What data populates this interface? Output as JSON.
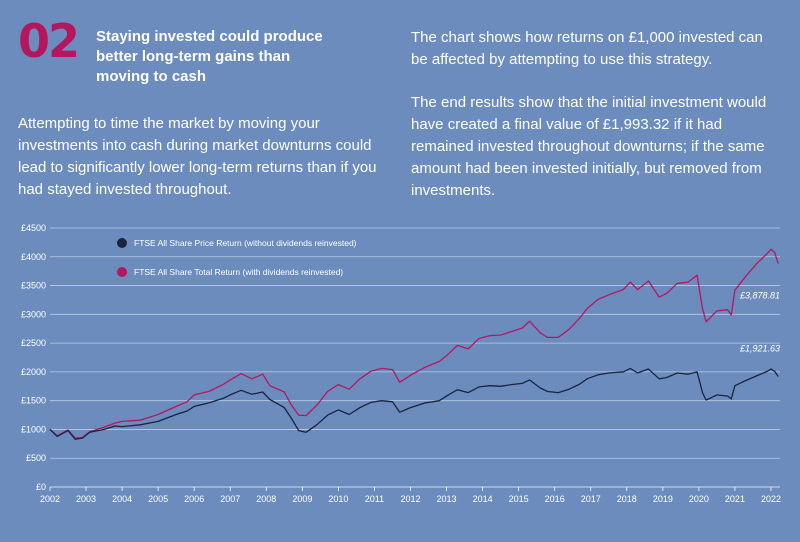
{
  "section": {
    "number": "02",
    "heading": "Staying invested could produce better long-term gains than moving to cash",
    "intro": "Attempting to time the market by moving your investments into cash during market downturns could lead to significantly lower long-term returns than if you had stayed invested throughout.",
    "explain_1": "The chart shows how returns on £1,000 invested can be affected by attempting to use this strategy.",
    "explain_2": "The end results show that the initial investment would have created a final value of £1,993.32 if it had remained invested throughout downturns; if the same amount had been invested initially, but removed from investments."
  },
  "colors": {
    "background": "#6b8cbd",
    "accent": "#b5175f",
    "price_line": "#1a2440",
    "total_line": "#b5175f",
    "grid": "#ffffff"
  },
  "chart_data": {
    "type": "line",
    "title": "",
    "xlabel": "",
    "ylabel": "",
    "ylim": [
      0,
      4500
    ],
    "xlim": [
      2002,
      2022.25
    ],
    "y_ticks": [
      0,
      500,
      1000,
      1500,
      2000,
      2500,
      3000,
      3500,
      4000,
      4500
    ],
    "y_tick_labels": [
      "£0",
      "£500",
      "£1000",
      "£1500",
      "£2000",
      "£2500",
      "£3000",
      "£3500",
      "£4000",
      "£4500"
    ],
    "x_ticks": [
      "2002",
      "2003",
      "2004",
      "2005",
      "2006",
      "2007",
      "2008",
      "2009",
      "2010",
      "2011",
      "2012",
      "2013",
      "2014",
      "2015",
      "2016",
      "2017",
      "2018",
      "2019",
      "2020",
      "2021",
      "2022"
    ],
    "grid": true,
    "legend_position": "top-left",
    "series": [
      {
        "name": "FTSE All Share Price Return (without dividends reinvested)",
        "color": "#1a2440",
        "end_label": "£1,921.63",
        "points": [
          [
            2002,
            1000
          ],
          [
            2002.2,
            880
          ],
          [
            2002.5,
            980
          ],
          [
            2002.7,
            830
          ],
          [
            2002.9,
            850
          ],
          [
            2003.1,
            950
          ],
          [
            2003.5,
            1000
          ],
          [
            2003.8,
            1060
          ],
          [
            2004.0,
            1050
          ],
          [
            2004.5,
            1080
          ],
          [
            2005.0,
            1140
          ],
          [
            2005.5,
            1260
          ],
          [
            2005.8,
            1320
          ],
          [
            2006.0,
            1400
          ],
          [
            2006.4,
            1460
          ],
          [
            2006.8,
            1540
          ],
          [
            2007.0,
            1600
          ],
          [
            2007.3,
            1680
          ],
          [
            2007.6,
            1610
          ],
          [
            2007.9,
            1650
          ],
          [
            2008.1,
            1520
          ],
          [
            2008.5,
            1380
          ],
          [
            2008.7,
            1190
          ],
          [
            2008.9,
            980
          ],
          [
            2009.1,
            950
          ],
          [
            2009.4,
            1080
          ],
          [
            2009.7,
            1250
          ],
          [
            2010.0,
            1340
          ],
          [
            2010.3,
            1260
          ],
          [
            2010.6,
            1380
          ],
          [
            2010.9,
            1470
          ],
          [
            2011.2,
            1500
          ],
          [
            2011.5,
            1480
          ],
          [
            2011.7,
            1300
          ],
          [
            2012.0,
            1380
          ],
          [
            2012.4,
            1460
          ],
          [
            2012.8,
            1500
          ],
          [
            2013.0,
            1580
          ],
          [
            2013.3,
            1690
          ],
          [
            2013.6,
            1640
          ],
          [
            2013.9,
            1740
          ],
          [
            2014.2,
            1760
          ],
          [
            2014.5,
            1750
          ],
          [
            2014.8,
            1780
          ],
          [
            2015.1,
            1800
          ],
          [
            2015.3,
            1860
          ],
          [
            2015.6,
            1720
          ],
          [
            2015.8,
            1660
          ],
          [
            2016.1,
            1640
          ],
          [
            2016.4,
            1700
          ],
          [
            2016.7,
            1790
          ],
          [
            2016.9,
            1880
          ],
          [
            2017.2,
            1950
          ],
          [
            2017.5,
            1980
          ],
          [
            2017.9,
            2000
          ],
          [
            2018.1,
            2060
          ],
          [
            2018.3,
            1980
          ],
          [
            2018.6,
            2050
          ],
          [
            2018.9,
            1880
          ],
          [
            2019.1,
            1900
          ],
          [
            2019.4,
            1980
          ],
          [
            2019.7,
            1960
          ],
          [
            2019.95,
            2000
          ],
          [
            2020.1,
            1640
          ],
          [
            2020.2,
            1510
          ],
          [
            2020.5,
            1600
          ],
          [
            2020.8,
            1580
          ],
          [
            2020.9,
            1530
          ],
          [
            2021.0,
            1760
          ],
          [
            2021.3,
            1850
          ],
          [
            2021.6,
            1930
          ],
          [
            2021.9,
            2010
          ],
          [
            2022.0,
            2050
          ],
          [
            2022.1,
            2010
          ],
          [
            2022.2,
            1920
          ]
        ]
      },
      {
        "name": "FTSE All Share Total Return (with dividends reinvested)",
        "color": "#b5175f",
        "end_label": "£3,878.81",
        "points": [
          [
            2002,
            1000
          ],
          [
            2002.2,
            890
          ],
          [
            2002.5,
            990
          ],
          [
            2002.7,
            850
          ],
          [
            2002.9,
            860
          ],
          [
            2003.1,
            960
          ],
          [
            2003.5,
            1040
          ],
          [
            2003.8,
            1110
          ],
          [
            2004.0,
            1140
          ],
          [
            2004.5,
            1160
          ],
          [
            2005.0,
            1260
          ],
          [
            2005.5,
            1400
          ],
          [
            2005.8,
            1480
          ],
          [
            2006.0,
            1600
          ],
          [
            2006.4,
            1660
          ],
          [
            2006.8,
            1780
          ],
          [
            2007.0,
            1860
          ],
          [
            2007.3,
            1970
          ],
          [
            2007.6,
            1880
          ],
          [
            2007.9,
            1960
          ],
          [
            2008.1,
            1760
          ],
          [
            2008.5,
            1650
          ],
          [
            2008.7,
            1420
          ],
          [
            2008.9,
            1250
          ],
          [
            2009.1,
            1240
          ],
          [
            2009.4,
            1420
          ],
          [
            2009.7,
            1660
          ],
          [
            2010.0,
            1780
          ],
          [
            2010.3,
            1700
          ],
          [
            2010.6,
            1880
          ],
          [
            2010.9,
            2010
          ],
          [
            2011.2,
            2060
          ],
          [
            2011.5,
            2040
          ],
          [
            2011.7,
            1820
          ],
          [
            2012.0,
            1940
          ],
          [
            2012.4,
            2080
          ],
          [
            2012.8,
            2180
          ],
          [
            2013.0,
            2280
          ],
          [
            2013.3,
            2460
          ],
          [
            2013.6,
            2400
          ],
          [
            2013.9,
            2580
          ],
          [
            2014.2,
            2630
          ],
          [
            2014.5,
            2640
          ],
          [
            2014.8,
            2700
          ],
          [
            2015.1,
            2760
          ],
          [
            2015.3,
            2880
          ],
          [
            2015.6,
            2680
          ],
          [
            2015.8,
            2600
          ],
          [
            2016.1,
            2600
          ],
          [
            2016.4,
            2740
          ],
          [
            2016.7,
            2940
          ],
          [
            2016.9,
            3100
          ],
          [
            2017.2,
            3260
          ],
          [
            2017.5,
            3340
          ],
          [
            2017.9,
            3430
          ],
          [
            2018.1,
            3560
          ],
          [
            2018.3,
            3430
          ],
          [
            2018.6,
            3580
          ],
          [
            2018.9,
            3300
          ],
          [
            2019.1,
            3360
          ],
          [
            2019.4,
            3540
          ],
          [
            2019.7,
            3560
          ],
          [
            2019.95,
            3680
          ],
          [
            2020.1,
            3100
          ],
          [
            2020.2,
            2870
          ],
          [
            2020.5,
            3060
          ],
          [
            2020.8,
            3080
          ],
          [
            2020.9,
            2990
          ],
          [
            2021.0,
            3420
          ],
          [
            2021.3,
            3660
          ],
          [
            2021.6,
            3880
          ],
          [
            2021.9,
            4060
          ],
          [
            2022.0,
            4130
          ],
          [
            2022.1,
            4080
          ],
          [
            2022.2,
            3880
          ]
        ]
      }
    ]
  }
}
